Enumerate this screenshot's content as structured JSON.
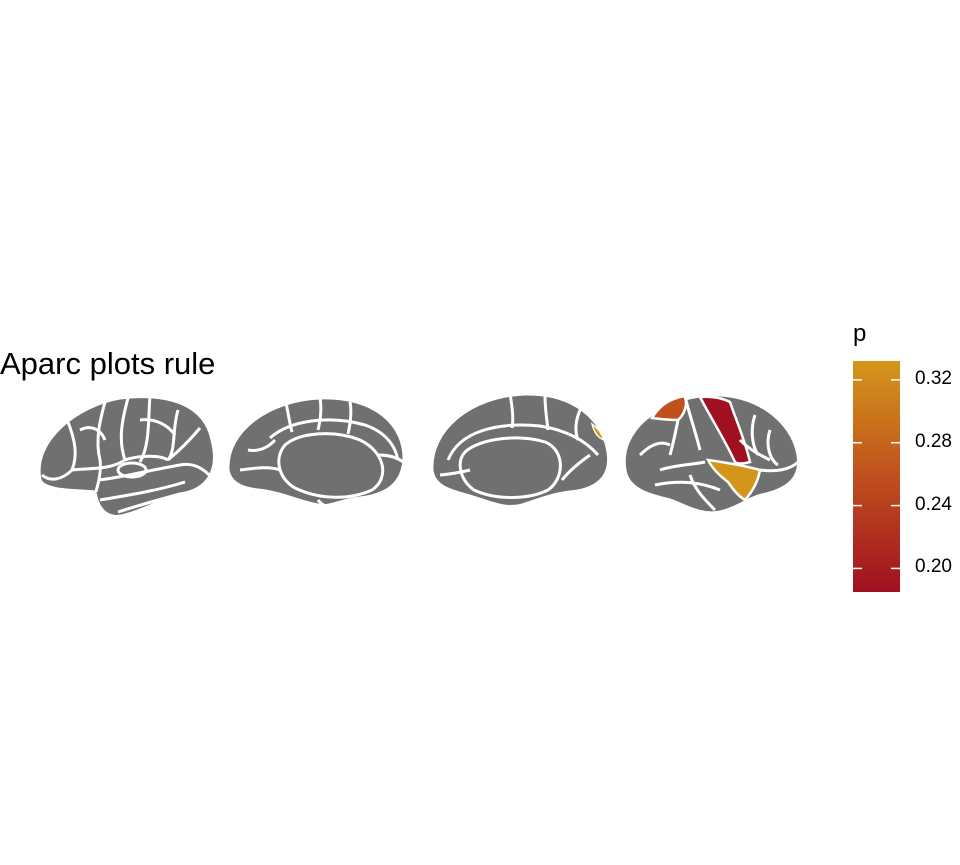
{
  "chart_data": {
    "type": "heatmap",
    "title": "Aparc plots rule",
    "legend": {
      "title": "p",
      "placement": "right",
      "range": [
        0.185,
        0.332
      ],
      "ticks": [
        {
          "value": 0.32,
          "label": "0.32"
        },
        {
          "value": 0.28,
          "label": "0.28"
        },
        {
          "value": 0.24,
          "label": "0.24"
        },
        {
          "value": 0.2,
          "label": "0.20"
        }
      ],
      "colors": {
        "low": "#a01020",
        "mid": "#c0501e",
        "high": "#d4961a"
      }
    },
    "base_color": "#707070",
    "border_color": "#ffffff",
    "highlighted_regions": [
      {
        "view": "right-lateral",
        "p": 0.19
      },
      {
        "view": "right-lateral",
        "p": 0.27
      },
      {
        "view": "right-lateral",
        "p": 0.32
      },
      {
        "view": "right-medial",
        "p": 0.3
      }
    ]
  }
}
